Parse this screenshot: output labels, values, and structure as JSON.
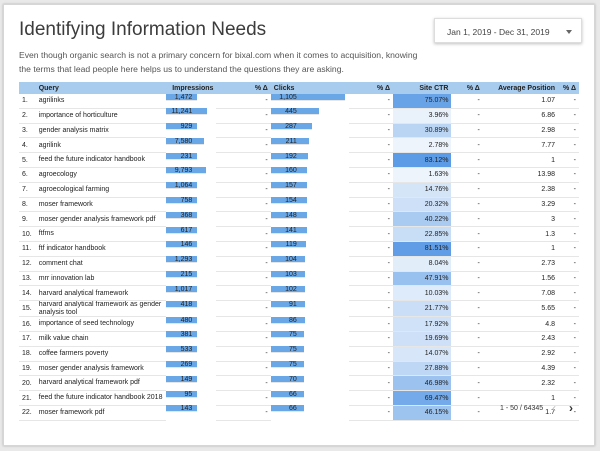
{
  "page": {
    "title": "Identifying Information Needs",
    "description": "Even though organic search is not a primary concern for bixal.com when it comes to acquisition, knowing the terms that lead people here helps us to understand the questions they are asking."
  },
  "date_range": {
    "label": "Jan 1, 2019 - Dec 31, 2019"
  },
  "table": {
    "columns": [
      "Query",
      "Impressions",
      "% Δ",
      "Clicks",
      "% Δ",
      "Site CTR",
      "% Δ",
      "Average Position",
      "% Δ"
    ],
    "rows": [
      {
        "n": "1.",
        "q": "agrilinks",
        "imp": "1,472",
        "imp_f": 0.005,
        "d1": "-",
        "clk": "1,105",
        "clk_f": 1.0,
        "d2": "-",
        "ctr": "75.07%",
        "ctr_f": 0.91,
        "d3": "-",
        "pos": "1.07",
        "d4": "-"
      },
      {
        "n": "2.",
        "q": "importance of horticulture",
        "imp": "11,241",
        "imp_f": 0.28,
        "d1": "-",
        "clk": "445",
        "clk_f": 0.4,
        "d2": "-",
        "ctr": "3.96%",
        "ctr_f": 0.05,
        "d3": "-",
        "pos": "6.86",
        "d4": "-"
      },
      {
        "n": "3.",
        "q": "gender analysis matrix",
        "imp": "929",
        "imp_f": 0.003,
        "d1": "-",
        "clk": "287",
        "clk_f": 0.26,
        "d2": "-",
        "ctr": "30.89%",
        "ctr_f": 0.37,
        "d3": "-",
        "pos": "2.98",
        "d4": "-"
      },
      {
        "n": "4.",
        "q": "agrilink",
        "imp": "7,580",
        "imp_f": 0.19,
        "d1": "-",
        "clk": "211",
        "clk_f": 0.19,
        "d2": "-",
        "ctr": "2.78%",
        "ctr_f": 0.03,
        "d3": "-",
        "pos": "7.77",
        "d4": "-"
      },
      {
        "n": "5.",
        "q": "feed the future indicator handbook",
        "imp": "231",
        "imp_f": 0.002,
        "d1": "-",
        "clk": "192",
        "clk_f": 0.17,
        "d2": "-",
        "ctr": "83.12%",
        "ctr_f": 1.0,
        "d3": "-",
        "pos": "1",
        "d4": "-"
      },
      {
        "n": "6.",
        "q": "agroecology",
        "imp": "9,793",
        "imp_f": 0.24,
        "d1": "-",
        "clk": "160",
        "clk_f": 0.14,
        "d2": "-",
        "ctr": "1.63%",
        "ctr_f": 0.02,
        "d3": "-",
        "pos": "13.98",
        "d4": "-"
      },
      {
        "n": "7.",
        "q": "agroecological farming",
        "imp": "1,064",
        "imp_f": 0.004,
        "d1": "-",
        "clk": "157",
        "clk_f": 0.14,
        "d2": "-",
        "ctr": "14.76%",
        "ctr_f": 0.18,
        "d3": "-",
        "pos": "2.38",
        "d4": "-"
      },
      {
        "n": "8.",
        "q": "moser framework",
        "imp": "758",
        "imp_f": 0.003,
        "d1": "-",
        "clk": "154",
        "clk_f": 0.14,
        "d2": "-",
        "ctr": "20.32%",
        "ctr_f": 0.24,
        "d3": "-",
        "pos": "3.29",
        "d4": "-"
      },
      {
        "n": "9.",
        "q": "moser gender analysis framework pdf",
        "imp": "368",
        "imp_f": 0.002,
        "d1": "-",
        "clk": "148",
        "clk_f": 0.13,
        "d2": "-",
        "ctr": "40.22%",
        "ctr_f": 0.48,
        "d3": "-",
        "pos": "3",
        "d4": "-"
      },
      {
        "n": "10.",
        "q": "ftfms",
        "imp": "617",
        "imp_f": 0.003,
        "d1": "-",
        "clk": "141",
        "clk_f": 0.13,
        "d2": "-",
        "ctr": "22.85%",
        "ctr_f": 0.27,
        "d3": "-",
        "pos": "1.3",
        "d4": "-"
      },
      {
        "n": "11.",
        "q": "ftf indicator handbook",
        "imp": "146",
        "imp_f": 0.002,
        "d1": "-",
        "clk": "119",
        "clk_f": 0.11,
        "d2": "-",
        "ctr": "81.51%",
        "ctr_f": 0.98,
        "d3": "-",
        "pos": "1",
        "d4": "-"
      },
      {
        "n": "12.",
        "q": "comment chat",
        "imp": "1,293",
        "imp_f": 0.005,
        "d1": "-",
        "clk": "104",
        "clk_f": 0.09,
        "d2": "-",
        "ctr": "8.04%",
        "ctr_f": 0.1,
        "d3": "-",
        "pos": "2.73",
        "d4": "-"
      },
      {
        "n": "13.",
        "q": "mrr innovation lab",
        "imp": "215",
        "imp_f": 0.002,
        "d1": "-",
        "clk": "103",
        "clk_f": 0.09,
        "d2": "-",
        "ctr": "47.91%",
        "ctr_f": 0.58,
        "d3": "-",
        "pos": "1.56",
        "d4": "-"
      },
      {
        "n": "14.",
        "q": "harvard analytical framework",
        "imp": "1,017",
        "imp_f": 0.004,
        "d1": "-",
        "clk": "102",
        "clk_f": 0.09,
        "d2": "-",
        "ctr": "10.03%",
        "ctr_f": 0.12,
        "d3": "-",
        "pos": "7.08",
        "d4": "-"
      },
      {
        "n": "15.",
        "q": "harvard analytical framework as gender analysis tool",
        "imp": "418",
        "imp_f": 0.002,
        "d1": "-",
        "clk": "91",
        "clk_f": 0.08,
        "d2": "-",
        "ctr": "21.77%",
        "ctr_f": 0.26,
        "d3": "-",
        "pos": "5.65",
        "d4": "-"
      },
      {
        "n": "16.",
        "q": "importance of seed technology",
        "imp": "480",
        "imp_f": 0.002,
        "d1": "-",
        "clk": "86",
        "clk_f": 0.08,
        "d2": "-",
        "ctr": "17.92%",
        "ctr_f": 0.22,
        "d3": "-",
        "pos": "4.8",
        "d4": "-"
      },
      {
        "n": "17.",
        "q": "milk value chain",
        "imp": "381",
        "imp_f": 0.002,
        "d1": "-",
        "clk": "75",
        "clk_f": 0.07,
        "d2": "-",
        "ctr": "19.69%",
        "ctr_f": 0.24,
        "d3": "-",
        "pos": "2.43",
        "d4": "-"
      },
      {
        "n": "18.",
        "q": "coffee farmers poverty",
        "imp": "533",
        "imp_f": 0.002,
        "d1": "-",
        "clk": "75",
        "clk_f": 0.07,
        "d2": "-",
        "ctr": "14.07%",
        "ctr_f": 0.17,
        "d3": "-",
        "pos": "2.92",
        "d4": "-"
      },
      {
        "n": "19.",
        "q": "moser gender analysis framework",
        "imp": "269",
        "imp_f": 0.002,
        "d1": "-",
        "clk": "75",
        "clk_f": 0.07,
        "d2": "-",
        "ctr": "27.88%",
        "ctr_f": 0.34,
        "d3": "-",
        "pos": "4.39",
        "d4": "-"
      },
      {
        "n": "20.",
        "q": "harvard analytical framework pdf",
        "imp": "149",
        "imp_f": 0.002,
        "d1": "-",
        "clk": "70",
        "clk_f": 0.06,
        "d2": "-",
        "ctr": "46.98%",
        "ctr_f": 0.57,
        "d3": "-",
        "pos": "2.32",
        "d4": "-"
      },
      {
        "n": "21.",
        "q": "feed the future indicator handbook 2018",
        "imp": "95",
        "imp_f": 0.001,
        "d1": "-",
        "clk": "66",
        "clk_f": 0.06,
        "d2": "-",
        "ctr": "69.47%",
        "ctr_f": 0.84,
        "d3": "-",
        "pos": "1",
        "d4": "-"
      },
      {
        "n": "22.",
        "q": "moser framework pdf",
        "imp": "143",
        "imp_f": 0.002,
        "d1": "-",
        "clk": "66",
        "clk_f": 0.06,
        "d2": "-",
        "ctr": "46.15%",
        "ctr_f": 0.56,
        "d3": "-",
        "pos": "1.7",
        "d4": "-"
      }
    ]
  },
  "pagination": {
    "label": "1 - 50 / 64345",
    "prev_icon": "chevron-left-icon",
    "next_icon": "chevron-right-icon"
  },
  "colors": {
    "header_bg": "#a8ccee",
    "bar": "#6aa7e6",
    "ctr_heat": "#4a90e2"
  }
}
